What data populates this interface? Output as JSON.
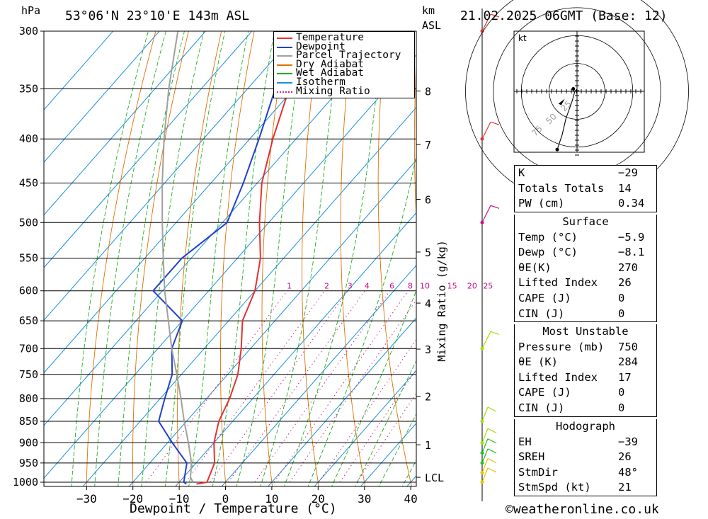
{
  "header": {
    "hpa_label": "hPa",
    "location": "53°06'N 23°10'E 143m ASL",
    "km_label": "km",
    "asl_label": "ASL",
    "datetime": "21.02.2025 06GMT (Base: 12)"
  },
  "legend": [
    {
      "label": "Temperature",
      "color": "#e83030",
      "style": "solid"
    },
    {
      "label": "Dewpoint",
      "color": "#2040d0",
      "style": "solid"
    },
    {
      "label": "Parcel Trajectory",
      "color": "#a0a0a0",
      "style": "solid"
    },
    {
      "label": "Dry Adiabat",
      "color": "#e07000",
      "style": "solid"
    },
    {
      "label": "Wet Adiabat",
      "color": "#20b020",
      "style": "solid"
    },
    {
      "label": "Isotherm",
      "color": "#1890e0",
      "style": "solid"
    },
    {
      "label": "Mixing Ratio",
      "color": "#d02090",
      "style": "dotted"
    }
  ],
  "chart_data": {
    "type": "line",
    "subtype": "skew-T log-P sounding",
    "xlabel": "Dewpoint / Temperature (°C)",
    "ylabel": "hPa",
    "y2label": "Mixing Ratio (g/kg)",
    "x_ticks": [
      -30,
      -20,
      -10,
      0,
      10,
      20,
      30,
      40
    ],
    "pressure_levels": [
      300,
      350,
      400,
      450,
      500,
      550,
      600,
      650,
      700,
      750,
      800,
      850,
      900,
      950,
      1000
    ],
    "km_ticks": [
      {
        "label": "8",
        "p": 352
      },
      {
        "label": "7",
        "p": 406
      },
      {
        "label": "6",
        "p": 470
      },
      {
        "label": "5",
        "p": 541
      },
      {
        "label": "4",
        "p": 620
      },
      {
        "label": "3",
        "p": 701
      },
      {
        "label": "2",
        "p": 795
      },
      {
        "label": "1",
        "p": 905
      },
      {
        "label": "LCL",
        "p": 987
      }
    ],
    "mixing_ratio_labels": [
      "1",
      "2",
      "3",
      "4",
      "6",
      "8",
      "10",
      "15",
      "20",
      "25"
    ],
    "mixing_ratio_values": [
      1,
      2,
      3,
      4,
      6,
      8,
      10,
      15,
      20,
      25
    ],
    "series": [
      {
        "name": "Temperature",
        "color": "#e83030",
        "p": [
          1005,
          1000,
          950,
          900,
          850,
          800,
          750,
          700,
          650,
          600,
          550,
          500,
          450,
          400,
          350,
          300
        ],
        "t": [
          -5.9,
          -4,
          -6,
          -10,
          -13,
          -15,
          -17.8,
          -22,
          -27,
          -30,
          -35,
          -42,
          -49,
          -55,
          -61,
          -67
        ]
      },
      {
        "name": "Dewpoint",
        "color": "#2040d0",
        "p": [
          1005,
          1000,
          950,
          900,
          850,
          800,
          750,
          700,
          650,
          600,
          550,
          500,
          450,
          400,
          350,
          300
        ],
        "t": [
          -8.1,
          -9,
          -12,
          -19,
          -26,
          -29,
          -32,
          -37,
          -40,
          -52,
          -52,
          -49,
          -53,
          -58,
          -64,
          -71
        ]
      },
      {
        "name": "Parcel Trajectory",
        "color": "#a0a0a0",
        "p": [
          1000,
          987,
          950,
          900,
          850,
          800,
          750,
          700,
          650,
          600,
          550,
          500,
          450,
          400,
          350,
          300
        ],
        "t": [
          -7,
          -8.5,
          -11,
          -15.5,
          -20.5,
          -25.5,
          -31,
          -37,
          -43,
          -49.5,
          -56,
          -63,
          -70.5,
          -78.5,
          -87,
          -96
        ]
      }
    ],
    "wind_barbs": [
      {
        "p": 1000,
        "color": "#e8c000"
      },
      {
        "p": 975,
        "color": "#e8c000"
      },
      {
        "p": 950,
        "color": "#20c020"
      },
      {
        "p": 925,
        "color": "#20c020"
      },
      {
        "p": 900,
        "color": "#a0e000"
      },
      {
        "p": 850,
        "color": "#a0e000"
      },
      {
        "p": 700,
        "color": "#a0e000"
      },
      {
        "p": 500,
        "color": "#c0108a"
      },
      {
        "p": 400,
        "color": "#e83030"
      },
      {
        "p": 300,
        "color": "#e83030"
      }
    ]
  },
  "hodograph": {
    "unit_label": "kt",
    "ring_labels": [
      "25",
      "50",
      "75"
    ],
    "trace": [
      {
        "u": -3,
        "v": 2
      },
      {
        "u": -2,
        "v": -1
      },
      {
        "u": -4,
        "v": -8
      },
      {
        "u": -9,
        "v": -22
      },
      {
        "u": -12,
        "v": -35
      },
      {
        "u": -16,
        "v": -47
      }
    ],
    "storm_motion": {
      "u": -15,
      "v": -10
    }
  },
  "indices": {
    "basic": [
      {
        "key": "K",
        "value": "-29"
      },
      {
        "key": "Totals Totals",
        "value": "14"
      },
      {
        "key": "PW (cm)",
        "value": "0.34"
      }
    ],
    "surface_title": "Surface",
    "surface": [
      {
        "key": "Temp (°C)",
        "value": "-5.9"
      },
      {
        "key": "Dewp (°C)",
        "value": "-8.1"
      },
      {
        "key": "θE(K)",
        "value": "270"
      },
      {
        "key": "Lifted Index",
        "value": "26"
      },
      {
        "key": "CAPE (J)",
        "value": "0"
      },
      {
        "key": "CIN (J)",
        "value": "0"
      }
    ],
    "unstable_title": "Most Unstable",
    "unstable": [
      {
        "key": "Pressure (mb)",
        "value": "750"
      },
      {
        "key": "θE (K)",
        "value": "284"
      },
      {
        "key": "Lifted Index",
        "value": "17"
      },
      {
        "key": "CAPE (J)",
        "value": "0"
      },
      {
        "key": "CIN (J)",
        "value": "0"
      }
    ],
    "hodograph_title": "Hodograph",
    "hodo": [
      {
        "key": "EH",
        "value": "-39"
      },
      {
        "key": "SREH",
        "value": "26"
      },
      {
        "key": "StmDir",
        "value": "48°"
      },
      {
        "key": "StmSpd (kt)",
        "value": "21"
      }
    ]
  },
  "footer": {
    "copyright_symbol": "©",
    "site": "weatheronline.co.uk"
  }
}
